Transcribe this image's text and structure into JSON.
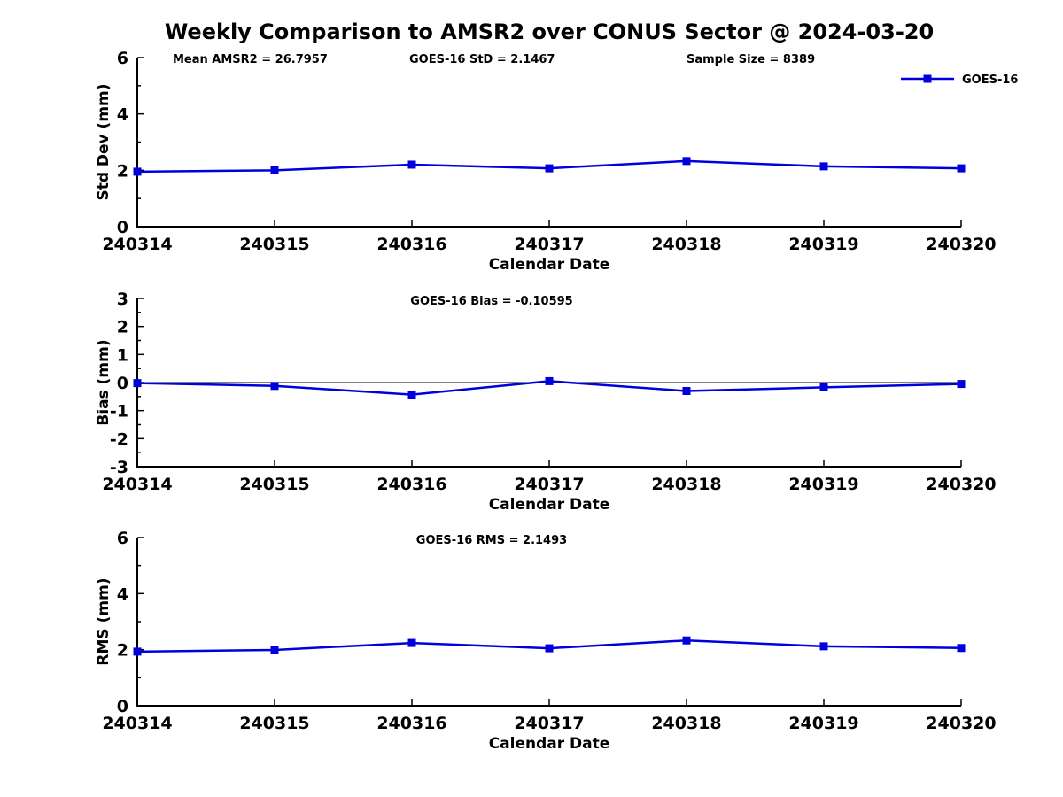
{
  "figure": {
    "title": "Weekly Comparison to AMSR2 over CONUS Sector @ 2024-03-20"
  },
  "colors": {
    "series": "#0000dd",
    "axis": "#000000",
    "zero_line": "#000000",
    "text": "#000000"
  },
  "legend": {
    "label": "GOES-16",
    "position": "top-right",
    "border": false
  },
  "chart_data": [
    {
      "type": "line",
      "title": "",
      "annotations": [
        "Mean AMSR2 = 26.7957",
        "GOES-16 StD = 2.1467",
        "Sample Size = 8389"
      ],
      "xlabel": "Calendar Date",
      "ylabel": "Std Dev (mm)",
      "ylim": [
        0,
        6
      ],
      "yticks": [
        0,
        2,
        4,
        6
      ],
      "yminorticks": [
        1,
        3,
        5
      ],
      "categories": [
        "240314",
        "240315",
        "240316",
        "240317",
        "240318",
        "240319",
        "240320"
      ],
      "series": [
        {
          "name": "GOES-16",
          "values": [
            1.95,
            2.0,
            2.2,
            2.07,
            2.33,
            2.14,
            2.07
          ]
        }
      ],
      "grid": false,
      "zero_line": false,
      "show_legend": true
    },
    {
      "type": "line",
      "title": "GOES-16 Bias  = -0.10595",
      "annotations": [],
      "xlabel": "Calendar Date",
      "ylabel": "Bias (mm)",
      "ylim": [
        -3,
        3
      ],
      "yticks": [
        -3,
        -2,
        -1,
        0,
        1,
        2,
        3
      ],
      "yminorticks": [
        -2.5,
        -1.5,
        -0.5,
        0.5,
        1.5,
        2.5
      ],
      "categories": [
        "240314",
        "240315",
        "240316",
        "240317",
        "240318",
        "240319",
        "240320"
      ],
      "series": [
        {
          "name": "GOES-16",
          "values": [
            -0.02,
            -0.12,
            -0.43,
            0.05,
            -0.3,
            -0.17,
            -0.05
          ]
        }
      ],
      "grid": false,
      "zero_line": true,
      "show_legend": false
    },
    {
      "type": "line",
      "title": "GOES-16 RMS = 2.1493",
      "annotations": [],
      "xlabel": "Calendar Date",
      "ylabel": "RMS (mm)",
      "ylim": [
        0,
        6
      ],
      "yticks": [
        0,
        2,
        4,
        6
      ],
      "yminorticks": [
        1,
        3,
        5
      ],
      "categories": [
        "240314",
        "240315",
        "240316",
        "240317",
        "240318",
        "240319",
        "240320"
      ],
      "series": [
        {
          "name": "GOES-16",
          "values": [
            1.93,
            1.99,
            2.24,
            2.05,
            2.33,
            2.12,
            2.06
          ]
        }
      ],
      "grid": false,
      "zero_line": false,
      "show_legend": false
    }
  ]
}
